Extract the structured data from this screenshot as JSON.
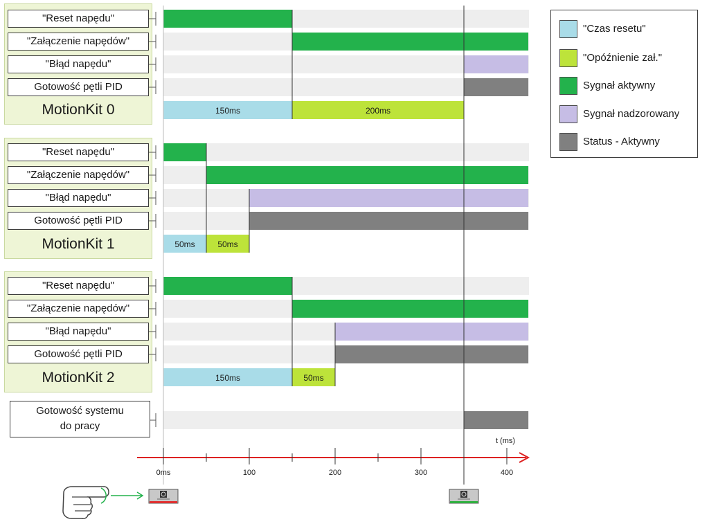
{
  "colors": {
    "track": "#eeeeee",
    "reset_time": "#a9dce8",
    "enable_delay": "#bde33a",
    "active_signal": "#23b24c",
    "monitored_signal": "#c6bde5",
    "status_active": "#808080",
    "axis": "#dd2222"
  },
  "groups": [
    {
      "name": "MotionKit 0",
      "rows": [
        {
          "label": "\"Reset napędu\"",
          "segment": {
            "start": 0,
            "end": 150,
            "type": "active_signal"
          }
        },
        {
          "label": "\"Załączenie napędów\"",
          "segment": {
            "start": 150,
            "end": 425,
            "type": "active_signal"
          }
        },
        {
          "label": "\"Błąd napędu\"",
          "segment": {
            "start": 350,
            "end": 425,
            "type": "monitored_signal"
          }
        },
        {
          "label": "Gotowość pętli PID",
          "segment": {
            "start": 350,
            "end": 425,
            "type": "status_active"
          }
        }
      ],
      "timings": [
        {
          "label": "150ms",
          "start": 0,
          "end": 150,
          "type": "reset_time"
        },
        {
          "label": "200ms",
          "start": 150,
          "end": 350,
          "type": "enable_delay"
        }
      ]
    },
    {
      "name": "MotionKit 1",
      "rows": [
        {
          "label": "\"Reset napędu\"",
          "segment": {
            "start": 0,
            "end": 50,
            "type": "active_signal"
          }
        },
        {
          "label": "\"Załączenie napędów\"",
          "segment": {
            "start": 50,
            "end": 425,
            "type": "active_signal"
          }
        },
        {
          "label": "\"Błąd napędu\"",
          "segment": {
            "start": 100,
            "end": 425,
            "type": "monitored_signal"
          }
        },
        {
          "label": "Gotowość pętli PID",
          "segment": {
            "start": 100,
            "end": 425,
            "type": "status_active"
          }
        }
      ],
      "timings": [
        {
          "label": "50ms",
          "start": 0,
          "end": 50,
          "type": "reset_time"
        },
        {
          "label": "50ms",
          "start": 50,
          "end": 100,
          "type": "enable_delay"
        }
      ]
    },
    {
      "name": "MotionKit 2",
      "rows": [
        {
          "label": "\"Reset napędu\"",
          "segment": {
            "start": 0,
            "end": 150,
            "type": "active_signal"
          }
        },
        {
          "label": "\"Załączenie napędów\"",
          "segment": {
            "start": 150,
            "end": 425,
            "type": "active_signal"
          }
        },
        {
          "label": "\"Błąd napędu\"",
          "segment": {
            "start": 200,
            "end": 425,
            "type": "monitored_signal"
          }
        },
        {
          "label": "Gotowość pętli PID",
          "segment": {
            "start": 200,
            "end": 425,
            "type": "status_active"
          }
        }
      ],
      "timings": [
        {
          "label": "150ms",
          "start": 0,
          "end": 150,
          "type": "reset_time"
        },
        {
          "label": "50ms",
          "start": 150,
          "end": 200,
          "type": "enable_delay"
        }
      ]
    }
  ],
  "system": {
    "label_line1": "Gotowość systemu",
    "label_line2": "do pracy",
    "segment": {
      "start": 350,
      "end": 425,
      "type": "status_active"
    }
  },
  "axis": {
    "unit_label": "t (ms)",
    "min": 0,
    "max": 425,
    "major_ticks": [
      {
        "value": 0,
        "label": "0ms"
      },
      {
        "value": 100,
        "label": "100"
      },
      {
        "value": 200,
        "label": "200"
      },
      {
        "value": 300,
        "label": "300"
      },
      {
        "value": 400,
        "label": "400"
      }
    ],
    "minor_ticks": [
      50,
      150,
      250,
      350
    ]
  },
  "markers": [
    {
      "value": 0,
      "indicator_color": "#e03030",
      "icon": "start-button-icon"
    },
    {
      "value": 350,
      "indicator_color": "#30b040",
      "icon": "ready-button-icon"
    }
  ],
  "hand_icon": "pointing-hand-icon",
  "legend": {
    "items": [
      {
        "label": "\"Czas resetu\"",
        "type": "reset_time"
      },
      {
        "label": "\"Opóźnienie zał.\"",
        "type": "enable_delay"
      },
      {
        "label": "Sygnał aktywny",
        "type": "active_signal"
      },
      {
        "label": "Sygnał nadzorowany",
        "type": "monitored_signal"
      },
      {
        "label": "Status - Aktywny",
        "type": "status_active"
      }
    ]
  }
}
